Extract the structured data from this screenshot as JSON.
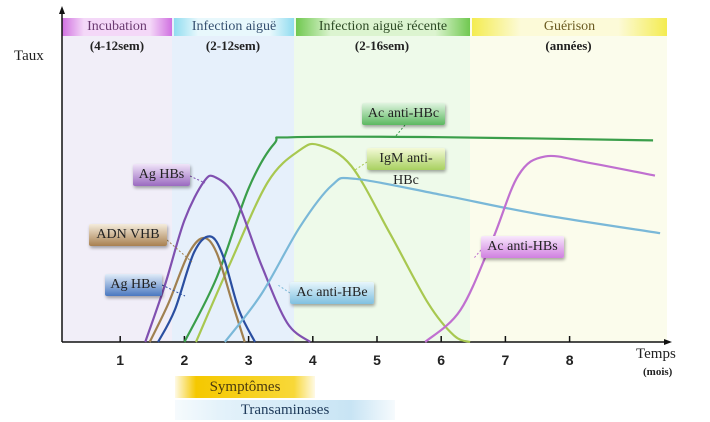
{
  "phases": [
    {
      "name": "Incubation",
      "duration": "(4-12sem)",
      "color": "#c070d0"
    },
    {
      "name": "Infection aiguë",
      "duration": "(2-12sem)",
      "color": "#80d0e8"
    },
    {
      "name": "Infection aiguë récente",
      "duration": "(2-16sem)",
      "color": "#60c040"
    },
    {
      "name": "Guérison",
      "duration": "(années)",
      "color": "#f0e840"
    }
  ],
  "axes": {
    "y_label": "Taux",
    "x_label": "Temps",
    "x_unit": "(mois)",
    "x_ticks": [
      "1",
      "2",
      "3",
      "4",
      "5",
      "6",
      "7",
      "8"
    ]
  },
  "curves": [
    {
      "name": "Ac anti-HBc",
      "color": "#3a9e4a",
      "points": [
        [
          2.0,
          0
        ],
        [
          2.5,
          20
        ],
        [
          3.0,
          48
        ],
        [
          3.4,
          62
        ],
        [
          3.7,
          64
        ],
        [
          6,
          64
        ],
        [
          9.3,
          63
        ]
      ]
    },
    {
      "name": "IgM anti-HBc",
      "color": "#a8c850",
      "points": [
        [
          2.18,
          0
        ],
        [
          2.7,
          24
        ],
        [
          3.3,
          50
        ],
        [
          3.8,
          60
        ],
        [
          4.1,
          61.5
        ],
        [
          4.6,
          55
        ],
        [
          5.2,
          34
        ],
        [
          5.8,
          12
        ],
        [
          6.2,
          2
        ],
        [
          6.45,
          0
        ]
      ]
    },
    {
      "name": "Ag HBs",
      "color": "#8050b0",
      "points": [
        [
          1.39,
          0
        ],
        [
          1.7,
          18
        ],
        [
          2.0,
          38
        ],
        [
          2.3,
          50
        ],
        [
          2.48,
          51.5
        ],
        [
          2.8,
          45
        ],
        [
          3.2,
          24
        ],
        [
          3.6,
          6
        ],
        [
          3.96,
          0
        ]
      ]
    },
    {
      "name": "ADN VHB",
      "color": "#a08050",
      "points": [
        [
          1.46,
          0
        ],
        [
          1.75,
          12
        ],
        [
          2.05,
          27
        ],
        [
          2.29,
          32.5
        ],
        [
          2.5,
          28
        ],
        [
          2.75,
          12
        ],
        [
          2.94,
          0
        ]
      ]
    },
    {
      "name": "Ag HBe",
      "color": "#2a4ea0",
      "points": [
        [
          1.59,
          0
        ],
        [
          1.85,
          10
        ],
        [
          2.15,
          28
        ],
        [
          2.4,
          33
        ],
        [
          2.6,
          27
        ],
        [
          2.85,
          10
        ],
        [
          3.1,
          0
        ]
      ]
    },
    {
      "name": "Ac anti-HBe",
      "color": "#7ab8d8",
      "points": [
        [
          2.63,
          0
        ],
        [
          3.2,
          15
        ],
        [
          3.8,
          36
        ],
        [
          4.3,
          49
        ],
        [
          4.66,
          51
        ],
        [
          6,
          46
        ],
        [
          7.5,
          40
        ],
        [
          9.41,
          34
        ]
      ]
    },
    {
      "name": "Ac anti-HBs",
      "color": "#c070d0",
      "points": [
        [
          5.75,
          0
        ],
        [
          6.3,
          10
        ],
        [
          6.8,
          32
        ],
        [
          7.2,
          52
        ],
        [
          7.62,
          58
        ],
        [
          8.3,
          56
        ],
        [
          9.33,
          52
        ]
      ]
    }
  ],
  "bars": [
    {
      "name": "Symptômes",
      "color": "#f5c800"
    },
    {
      "name": "Transaminases",
      "color": "#a8d4ec"
    }
  ]
}
